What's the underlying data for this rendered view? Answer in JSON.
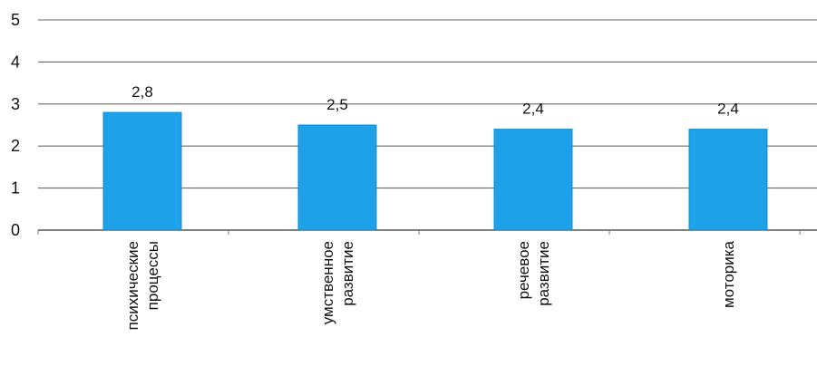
{
  "chart_data": {
    "type": "bar",
    "title": "",
    "xlabel": "",
    "ylabel": "",
    "ylim": [
      0,
      5
    ],
    "yticks": [
      "0",
      "1",
      "2",
      "3",
      "4",
      "5"
    ],
    "grid": true,
    "legend": "none",
    "bar_color": "#1da1e8",
    "categories": [
      [
        "психические",
        "процессы"
      ],
      [
        "умственное",
        "развитие"
      ],
      [
        "речевое",
        "развитие"
      ],
      [
        "моторика"
      ]
    ],
    "values": [
      2.8,
      2.5,
      2.4,
      2.4
    ],
    "data_labels": [
      "2,8",
      "2,5",
      "2,4",
      "2,4"
    ]
  }
}
